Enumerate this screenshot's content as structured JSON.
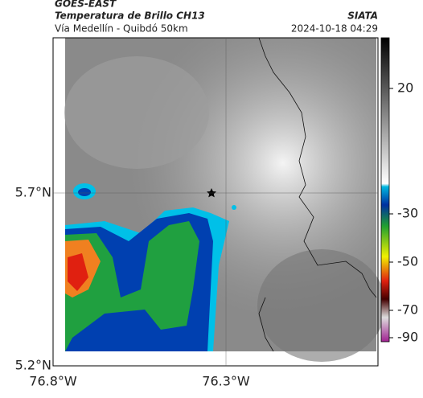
{
  "header": {
    "source": "GOES-EAST",
    "title": "Temperatura de Brillo CH13",
    "org": "SIATA",
    "subtitle": "Vía Medellín - Quibdó 50km",
    "datetime": "2024-10-18 04:29"
  },
  "map": {
    "lat_ticks": [
      {
        "value": 5.7,
        "label": "5.7°N"
      },
      {
        "value": 5.2,
        "label": "5.2°N"
      }
    ],
    "lon_ticks": [
      {
        "value": -76.8,
        "label": "76.8°W"
      },
      {
        "value": -76.3,
        "label": "76.3°W"
      }
    ]
  },
  "colorbar": {
    "ticks": [
      20,
      -30,
      -50,
      -70,
      -90
    ]
  }
}
